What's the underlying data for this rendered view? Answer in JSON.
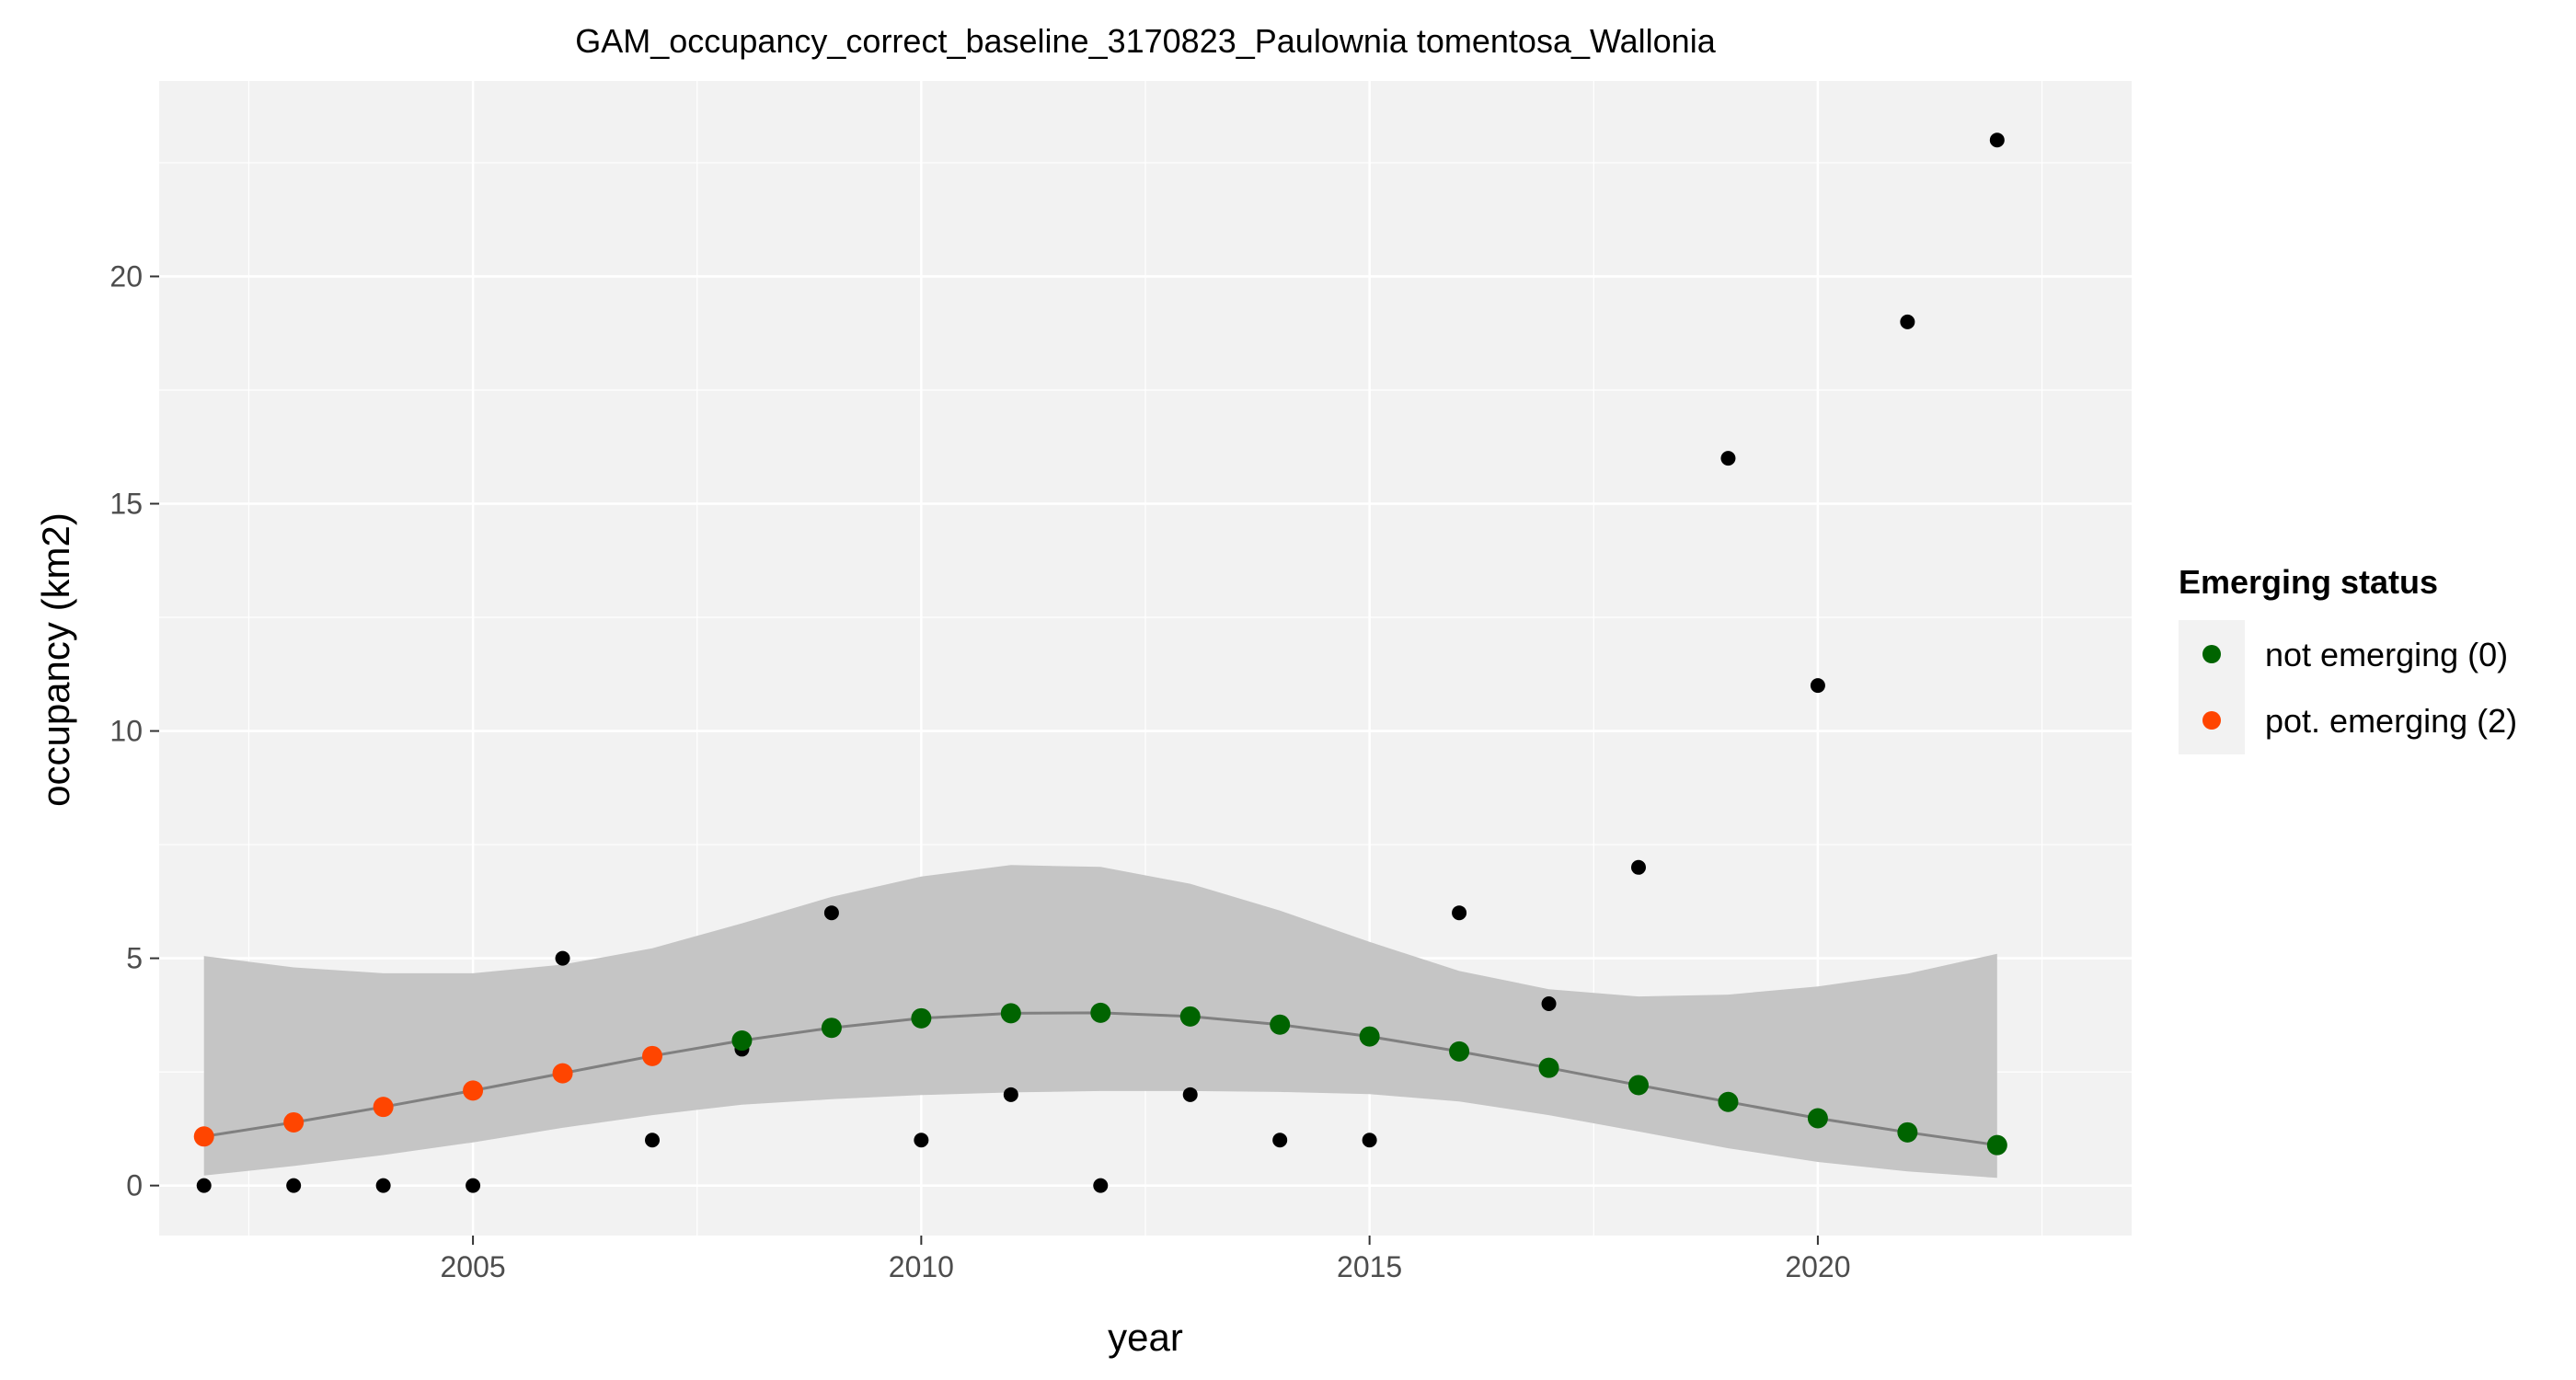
{
  "chart_data": {
    "type": "scatter",
    "title": "GAM_occupancy_correct_baseline_3170823_Paulownia tomentosa_Wallonia",
    "xlabel": "year",
    "ylabel": "occupancy (km2)",
    "xlim": [
      2001.5,
      2023.5
    ],
    "ylim": [
      -1.1,
      24.3
    ],
    "x_ticks": [
      2005,
      2010,
      2015,
      2020
    ],
    "y_ticks": [
      0,
      5,
      10,
      15,
      20
    ],
    "x_tick_labels": [
      "2005",
      "2010",
      "2015",
      "2020"
    ],
    "y_tick_labels": [
      "0",
      "5",
      "10",
      "15",
      "20"
    ],
    "grid": true,
    "legend": {
      "title": "Emerging status",
      "position": "right",
      "entries": [
        {
          "label": "not emerging (0)",
          "color": "#006400"
        },
        {
          "label": "pot. emerging (2)",
          "color": "#FF4500"
        }
      ]
    },
    "observed": {
      "x": [
        2002,
        2003,
        2004,
        2005,
        2006,
        2007,
        2008,
        2009,
        2010,
        2011,
        2012,
        2013,
        2014,
        2015,
        2016,
        2017,
        2018,
        2019,
        2020,
        2021,
        2022
      ],
      "y": [
        0,
        0,
        0,
        0,
        5,
        1,
        3,
        6,
        1,
        2,
        0,
        2,
        1,
        1,
        6,
        4,
        7,
        16,
        11,
        19,
        23
      ],
      "color": "#000000"
    },
    "fitted": {
      "x": [
        2002,
        2003,
        2004,
        2005,
        2006,
        2007,
        2008,
        2009,
        2010,
        2011,
        2012,
        2013,
        2014,
        2015,
        2016,
        2017,
        2018,
        2019,
        2020,
        2021,
        2022
      ],
      "y": [
        1.08,
        1.39,
        1.73,
        2.09,
        2.47,
        2.85,
        3.19,
        3.47,
        3.68,
        3.79,
        3.8,
        3.72,
        3.54,
        3.28,
        2.95,
        2.59,
        2.21,
        1.84,
        1.48,
        1.17,
        0.89
      ],
      "status": [
        2,
        2,
        2,
        2,
        2,
        2,
        0,
        0,
        0,
        0,
        0,
        0,
        0,
        0,
        0,
        0,
        0,
        0,
        0,
        0,
        0
      ],
      "lower": [
        0.22,
        0.43,
        0.67,
        0.95,
        1.27,
        1.55,
        1.78,
        1.9,
        1.99,
        2.05,
        2.08,
        2.08,
        2.06,
        2.01,
        1.85,
        1.55,
        1.19,
        0.82,
        0.52,
        0.31,
        0.17
      ],
      "upper": [
        5.05,
        4.8,
        4.67,
        4.67,
        4.86,
        5.22,
        5.77,
        6.35,
        6.8,
        7.05,
        7.01,
        6.64,
        6.05,
        5.36,
        4.72,
        4.32,
        4.16,
        4.2,
        4.38,
        4.66,
        5.1
      ],
      "line_color": "#808080",
      "ribbon_color": "#c2c2c2"
    },
    "panel_background": "#f2f2f2",
    "grid_color": "#ffffff"
  }
}
